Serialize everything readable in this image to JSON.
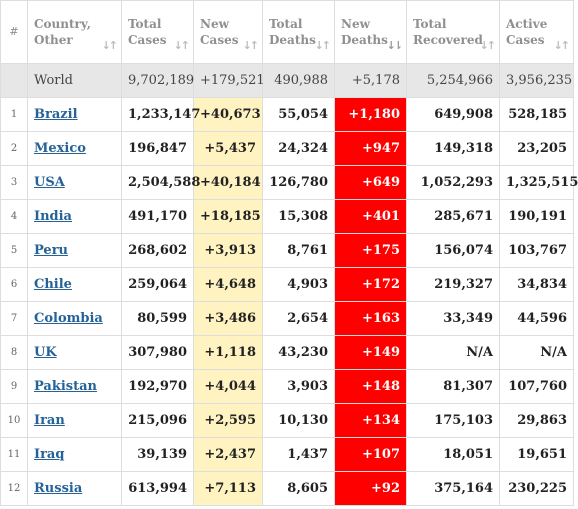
{
  "headers": {
    "num": "#",
    "country": [
      "Country,",
      "Other"
    ],
    "total_cases": [
      "Total",
      "Cases"
    ],
    "new_cases": [
      "New",
      "Cases"
    ],
    "total_deaths": [
      "Total",
      "Deaths"
    ],
    "new_deaths": [
      "New",
      "Deaths"
    ],
    "total_recovered": [
      "Total",
      "Recovered"
    ],
    "active_cases": [
      "Active",
      "Cases"
    ],
    "sort_icon": "↓↑",
    "sort_active_icon": "↓⇂"
  },
  "world": {
    "label": "World",
    "total_cases": "9,702,189",
    "new_cases": "+179,521",
    "total_deaths": "490,988",
    "new_deaths": "+5,178",
    "total_recovered": "5,254,966",
    "active_cases": "3,956,235"
  },
  "rows": [
    {
      "num": "1",
      "country": "Brazil",
      "total_cases": "1,233,147",
      "new_cases": "+40,673",
      "total_deaths": "55,054",
      "new_deaths": "+1,180",
      "total_recovered": "649,908",
      "active_cases": "528,185"
    },
    {
      "num": "2",
      "country": "Mexico",
      "total_cases": "196,847",
      "new_cases": "+5,437",
      "total_deaths": "24,324",
      "new_deaths": "+947",
      "total_recovered": "149,318",
      "active_cases": "23,205"
    },
    {
      "num": "3",
      "country": "USA",
      "total_cases": "2,504,588",
      "new_cases": "+40,184",
      "total_deaths": "126,780",
      "new_deaths": "+649",
      "total_recovered": "1,052,293",
      "active_cases": "1,325,515"
    },
    {
      "num": "4",
      "country": "India",
      "total_cases": "491,170",
      "new_cases": "+18,185",
      "total_deaths": "15,308",
      "new_deaths": "+401",
      "total_recovered": "285,671",
      "active_cases": "190,191"
    },
    {
      "num": "5",
      "country": "Peru",
      "total_cases": "268,602",
      "new_cases": "+3,913",
      "total_deaths": "8,761",
      "new_deaths": "+175",
      "total_recovered": "156,074",
      "active_cases": "103,767"
    },
    {
      "num": "6",
      "country": "Chile",
      "total_cases": "259,064",
      "new_cases": "+4,648",
      "total_deaths": "4,903",
      "new_deaths": "+172",
      "total_recovered": "219,327",
      "active_cases": "34,834"
    },
    {
      "num": "7",
      "country": "Colombia",
      "total_cases": "80,599",
      "new_cases": "+3,486",
      "total_deaths": "2,654",
      "new_deaths": "+163",
      "total_recovered": "33,349",
      "active_cases": "44,596"
    },
    {
      "num": "8",
      "country": "UK",
      "total_cases": "307,980",
      "new_cases": "+1,118",
      "total_deaths": "43,230",
      "new_deaths": "+149",
      "total_recovered": "N/A",
      "active_cases": "N/A"
    },
    {
      "num": "9",
      "country": "Pakistan",
      "total_cases": "192,970",
      "new_cases": "+4,044",
      "total_deaths": "3,903",
      "new_deaths": "+148",
      "total_recovered": "81,307",
      "active_cases": "107,760"
    },
    {
      "num": "10",
      "country": "Iran",
      "total_cases": "215,096",
      "new_cases": "+2,595",
      "total_deaths": "10,130",
      "new_deaths": "+134",
      "total_recovered": "175,103",
      "active_cases": "29,863"
    },
    {
      "num": "11",
      "country": "Iraq",
      "total_cases": "39,139",
      "new_cases": "+2,437",
      "total_deaths": "1,437",
      "new_deaths": "+107",
      "total_recovered": "18,051",
      "active_cases": "19,651"
    },
    {
      "num": "12",
      "country": "Russia",
      "total_cases": "613,994",
      "new_cases": "+7,113",
      "total_deaths": "8,605",
      "new_deaths": "+92",
      "total_recovered": "375,164",
      "active_cases": "230,225"
    }
  ],
  "colors": {
    "new_cases_bg": "#fff3c1",
    "new_deaths_bg": "#ff0000",
    "world_row_bg": "#e7e7e7",
    "link": "#246298"
  }
}
